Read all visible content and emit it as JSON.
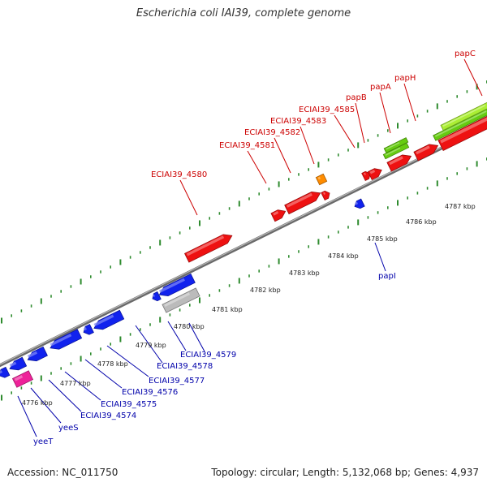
{
  "title": "Escherichia coli IAI39, complete genome",
  "footer": {
    "accession": "Accession: NC_011750",
    "topology": "Topology: circular; Length: 5,132,068 bp; Genes: 4,937"
  },
  "colors": {
    "forward_gene": "#ee1111",
    "reverse_gene": "#1122ee",
    "orange_gene": "#ff8c00",
    "green_gene": "#66cc11",
    "gray_gene": "#bbbbbb",
    "pink_gene": "#ee2299",
    "backbone": "#888888",
    "ticks": "#2e8b2e",
    "forward_label": "#cc0000",
    "reverse_label": "#0000aa"
  },
  "scale_labels": [
    "4776 kbp",
    "4777 kbp",
    "4778 kbp",
    "4779 kbp",
    "4780 kbp",
    "4781 kbp",
    "4782 kbp",
    "4783 kbp",
    "4784 kbp",
    "4785 kbp",
    "4786 kbp",
    "4787 kbp"
  ],
  "forward_gene_labels": [
    "ECIAI39_4580",
    "ECIAI39_4581",
    "ECIAI39_4582",
    "ECIAI39_4583",
    "ECIAI39_4585",
    "papB",
    "papA",
    "papH",
    "papC"
  ],
  "reverse_gene_labels": [
    "yeeT",
    "yeeS",
    "ECIAI39_4574",
    "ECIAI39_4575",
    "ECIAI39_4576",
    "ECIAI39_4577",
    "ECIAI39_4578",
    "ECIAI39_4579",
    "papI"
  ]
}
